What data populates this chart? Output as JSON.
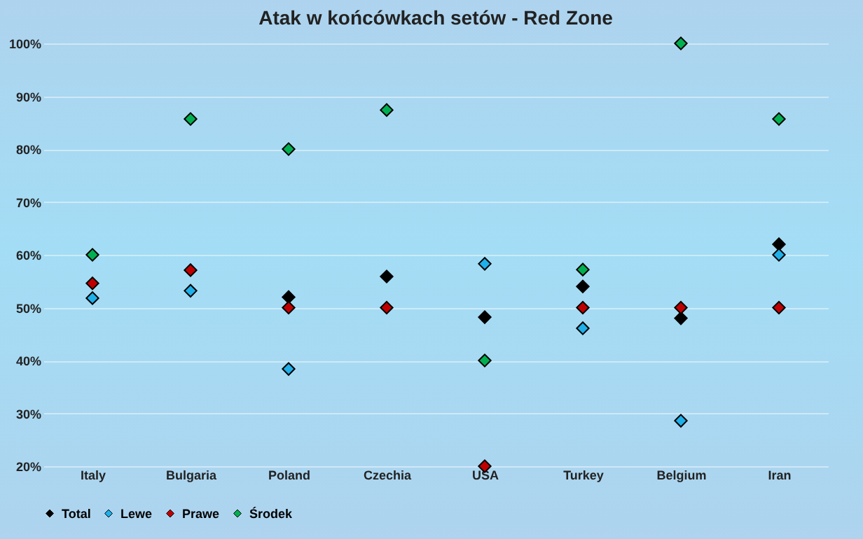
{
  "chart_data": {
    "type": "scatter",
    "title": "Atak w końcówkach setów - Red Zone",
    "categories": [
      "Italy",
      "Bulgaria",
      "Poland",
      "Czechia",
      "USA",
      "Turkey",
      "Belgium",
      "Iran"
    ],
    "series": [
      {
        "name": "Total",
        "color": "#000000",
        "values": [
          null,
          null,
          52,
          55.9,
          48.2,
          54,
          48,
          62
        ]
      },
      {
        "name": "Lewe",
        "color": "#1fb0ea",
        "values": [
          51.8,
          53.2,
          38.4,
          null,
          58.3,
          46.1,
          28.6,
          60
        ]
      },
      {
        "name": "Prawe",
        "color": "#c00000",
        "values": [
          54.6,
          57.1,
          50,
          50,
          20,
          50,
          50,
          50
        ]
      },
      {
        "name": "Środek",
        "color": "#00b050",
        "values": [
          60,
          85.7,
          80,
          87.4,
          40,
          57.2,
          100,
          85.7
        ]
      }
    ],
    "ylim": [
      20,
      100
    ],
    "yticks": [
      {
        "value": 20,
        "label": "20%"
      },
      {
        "value": 30,
        "label": "30%"
      },
      {
        "value": 40,
        "label": "40%"
      },
      {
        "value": 50,
        "label": "50%"
      },
      {
        "value": 60,
        "label": "60%"
      },
      {
        "value": 70,
        "label": "70%"
      },
      {
        "value": 80,
        "label": "80%"
      },
      {
        "value": 90,
        "label": "90%"
      },
      {
        "value": 100,
        "label": "100%"
      }
    ],
    "grid": "y",
    "legend": "bottom",
    "marker": "diamond"
  }
}
